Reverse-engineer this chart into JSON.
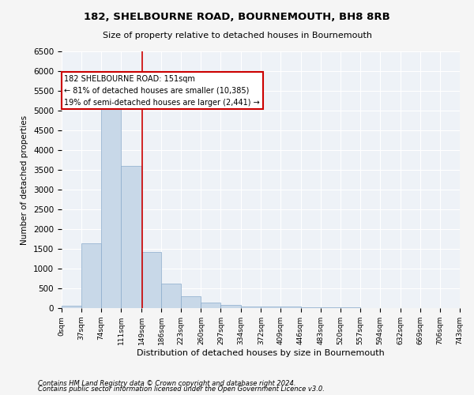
{
  "title": "182, SHELBOURNE ROAD, BOURNEMOUTH, BH8 8RB",
  "subtitle": "Size of property relative to detached houses in Bournemouth",
  "xlabel": "Distribution of detached houses by size in Bournemouth",
  "ylabel": "Number of detached properties",
  "bar_color": "#c8d8e8",
  "bar_edge_color": "#8aabcc",
  "bin_edges": [
    0,
    37,
    74,
    111,
    149,
    186,
    223,
    260,
    297,
    334,
    372,
    409,
    446,
    483,
    520,
    557,
    594,
    632,
    669,
    706,
    743
  ],
  "bar_heights": [
    70,
    1650,
    5050,
    3600,
    1420,
    620,
    310,
    145,
    90,
    50,
    40,
    35,
    30,
    20,
    15,
    10,
    8,
    5,
    5,
    5
  ],
  "vline_x": 151,
  "vline_color": "#cc0000",
  "annotation_text": "182 SHELBOURNE ROAD: 151sqm\n← 81% of detached houses are smaller (10,385)\n19% of semi-detached houses are larger (2,441) →",
  "annotation_box_color": "#ffffff",
  "annotation_box_edge_color": "#cc0000",
  "ylim": [
    0,
    6500
  ],
  "yticks": [
    0,
    500,
    1000,
    1500,
    2000,
    2500,
    3000,
    3500,
    4000,
    4500,
    5000,
    5500,
    6000,
    6500
  ],
  "footnote1": "Contains HM Land Registry data © Crown copyright and database right 2024.",
  "footnote2": "Contains public sector information licensed under the Open Government Licence v3.0.",
  "background_color": "#eef2f7",
  "fig_background_color": "#f5f5f5",
  "grid_color": "#ffffff",
  "tick_labels": [
    "0sqm",
    "37sqm",
    "74sqm",
    "111sqm",
    "149sqm",
    "186sqm",
    "223sqm",
    "260sqm",
    "297sqm",
    "334sqm",
    "372sqm",
    "409sqm",
    "446sqm",
    "483sqm",
    "520sqm",
    "557sqm",
    "594sqm",
    "632sqm",
    "669sqm",
    "706sqm",
    "743sqm"
  ]
}
